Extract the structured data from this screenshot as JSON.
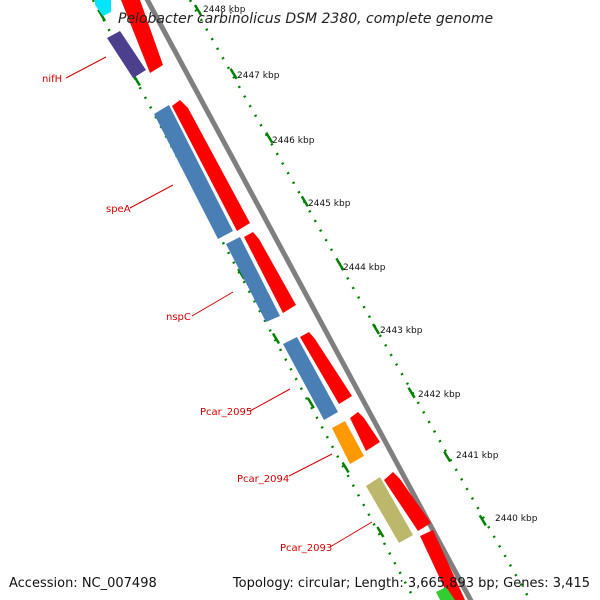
{
  "title": "Pelobacter carbinolicus DSM 2380, complete genome",
  "accession": "Accession: NC_007498",
  "topology": "Topology: circular; Length: 3,665,893 bp; Genes: 3,415",
  "ruler": {
    "ticks": [
      "2448 kbp",
      "2447 kbp",
      "2446 kbp",
      "2445 kbp",
      "2444 kbp",
      "2443 kbp",
      "2442 kbp",
      "2441 kbp",
      "2440 kbp"
    ]
  },
  "genes": {
    "labels": [
      "nifH",
      "speA",
      "nspC",
      "Pcar_2095",
      "Pcar_2094",
      "Pcar_2093"
    ]
  },
  "colors": {
    "backbone": "#7f7f7f",
    "forward": "#ff0000",
    "reverse_blue": "#4a7fb5",
    "reverse_purple": "#4b3f8e",
    "orange": "#ff9900",
    "khaki": "#bdb76b",
    "cyan": "#00e5ff",
    "green": "#33cc33",
    "tick": "#008000",
    "label": "#d40000"
  }
}
